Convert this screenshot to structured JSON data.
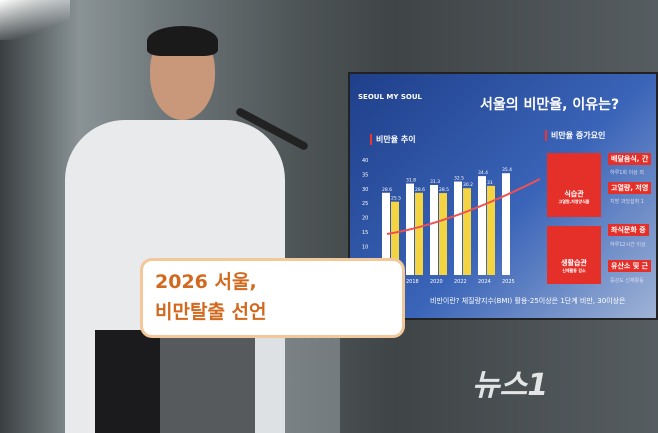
{
  "screen": {
    "brand": "SEOUL MY SOUL",
    "title": "서울의 비만율, 이유는?",
    "chart_title": "비만율 추이",
    "factors_title": "비만율 증가요인",
    "factor_cards": [
      {
        "label": "식습관",
        "badge": "고열량,저영양식품"
      },
      {
        "label": "생활습관",
        "badge": "신체활동 감소"
      }
    ],
    "factor_tags": [
      "배달음식, 간",
      "고열량, 저영",
      "좌식문화 증",
      "유산소 및 근"
    ],
    "factor_subs": [
      "하루1회 이상 외",
      "지방 과잉섭취 1",
      "하루12시간 이상",
      "중강도 신체활동"
    ],
    "footnote": "비만이란? 체질량지수(BMI) 활용-25이상은 1단계 비만, 30이상은"
  },
  "chart_data": {
    "type": "bar",
    "categories": [
      "",
      "2018",
      "2020",
      "2022",
      "2024",
      "2025"
    ],
    "series": [
      {
        "color": "#ffffff",
        "values": [
          28.6,
          31.8,
          31.3,
          32.5,
          34.4,
          35.4
        ]
      },
      {
        "color": "#f5d442",
        "values": [
          25.5,
          28.6,
          28.5,
          30.2,
          31,
          null
        ]
      }
    ],
    "yticks": [
      10,
      15,
      20,
      25,
      30,
      35,
      40
    ],
    "ylim": [
      0,
      40
    ]
  },
  "sign": {
    "line1": "2026 서울,",
    "line2": "비만탈출 선언"
  },
  "watermark": "뉴스1"
}
